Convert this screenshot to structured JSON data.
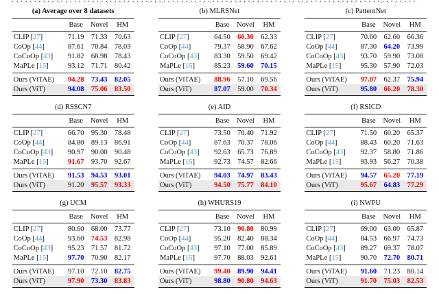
{
  "colors": {
    "best": "#ee0000",
    "second": "#0000ee",
    "cite": "#5f9ed1",
    "row_highlight": "#e9e9e9"
  },
  "header": {
    "columns": [
      "",
      "Base",
      "Novel",
      "HM"
    ]
  },
  "methods": [
    {
      "label": "CLIP",
      "cite": "27"
    },
    {
      "label": "CoOp",
      "cite": "44"
    },
    {
      "label": "CoCoOp",
      "cite": "43"
    },
    {
      "label": "MaPLe",
      "cite": "15"
    },
    {
      "label": "Ours (ViTAE)",
      "cite": null
    },
    {
      "label": "Ours (ViT)",
      "cite": null
    }
  ],
  "tables": [
    {
      "tag": "(a)",
      "name": "Average over 8 datasets",
      "bold": true,
      "values": [
        [
          [
            "71.19",
            "k"
          ],
          [
            "71.33",
            "k"
          ],
          [
            "70.63",
            "k"
          ]
        ],
        [
          [
            "87.61",
            "k"
          ],
          [
            "70.84",
            "k"
          ],
          [
            "78.03",
            "k"
          ]
        ],
        [
          [
            "91.82",
            "k"
          ],
          [
            "68.98",
            "k"
          ],
          [
            "78.43",
            "k"
          ]
        ],
        [
          [
            "93.12",
            "k"
          ],
          [
            "71.71",
            "k"
          ],
          [
            "80.42",
            "k"
          ]
        ],
        [
          [
            "94.28",
            "r"
          ],
          [
            "73.43",
            "b"
          ],
          [
            "82.05",
            "b"
          ]
        ],
        [
          [
            "94.08",
            "b"
          ],
          [
            "75.06",
            "r"
          ],
          [
            "83.50",
            "r"
          ]
        ]
      ]
    },
    {
      "tag": "(b)",
      "name": "MLRSNet",
      "bold": false,
      "values": [
        [
          [
            "64.50",
            "k"
          ],
          [
            "60.30",
            "r"
          ],
          [
            "62.33",
            "k"
          ]
        ],
        [
          [
            "79.37",
            "k"
          ],
          [
            "58.90",
            "k"
          ],
          [
            "67.62",
            "k"
          ]
        ],
        [
          [
            "83.30",
            "k"
          ],
          [
            "59.50",
            "k"
          ],
          [
            "69.42",
            "k"
          ]
        ],
        [
          [
            "85.23",
            "k"
          ],
          [
            "59.60",
            "b"
          ],
          [
            "70.15",
            "b"
          ]
        ],
        [
          [
            "88.96",
            "r"
          ],
          [
            "57.10",
            "k"
          ],
          [
            "69.56",
            "k"
          ]
        ],
        [
          [
            "87.07",
            "b"
          ],
          [
            "59.00",
            "k"
          ],
          [
            "70.34",
            "r"
          ]
        ]
      ]
    },
    {
      "tag": "(c)",
      "name": "PatternNet",
      "bold": false,
      "values": [
        [
          [
            "70.60",
            "k"
          ],
          [
            "62.60",
            "k"
          ],
          [
            "66.36",
            "k"
          ]
        ],
        [
          [
            "87.30",
            "k"
          ],
          [
            "64.20",
            "b"
          ],
          [
            "73.99",
            "k"
          ]
        ],
        [
          [
            "93.70",
            "k"
          ],
          [
            "59.90",
            "k"
          ],
          [
            "73.08",
            "k"
          ]
        ],
        [
          [
            "95.30",
            "k"
          ],
          [
            "57.90",
            "k"
          ],
          [
            "72.03",
            "k"
          ]
        ],
        [
          [
            "97.07",
            "r"
          ],
          [
            "62.37",
            "k"
          ],
          [
            "75.94",
            "b"
          ]
        ],
        [
          [
            "95.80",
            "b"
          ],
          [
            "66.20",
            "r"
          ],
          [
            "78.30",
            "r"
          ]
        ]
      ]
    },
    {
      "tag": "(d)",
      "name": "RSSCN7",
      "bold": false,
      "values": [
        [
          [
            "66.70",
            "k"
          ],
          [
            "95.30",
            "k"
          ],
          [
            "78.48",
            "k"
          ]
        ],
        [
          [
            "84.80",
            "k"
          ],
          [
            "89.13",
            "k"
          ],
          [
            "86.91",
            "k"
          ]
        ],
        [
          [
            "90.97",
            "k"
          ],
          [
            "90.00",
            "k"
          ],
          [
            "90.48",
            "k"
          ]
        ],
        [
          [
            "91.67",
            "r"
          ],
          [
            "93.70",
            "k"
          ],
          [
            "92.67",
            "k"
          ]
        ],
        [
          [
            "91.53",
            "b"
          ],
          [
            "94.53",
            "b"
          ],
          [
            "93.01",
            "b"
          ]
        ],
        [
          [
            "91.20",
            "k"
          ],
          [
            "95.57",
            "r"
          ],
          [
            "93.33",
            "r"
          ]
        ]
      ]
    },
    {
      "tag": "(e)",
      "name": "AID",
      "bold": false,
      "values": [
        [
          [
            "73.50",
            "k"
          ],
          [
            "70.40",
            "k"
          ],
          [
            "71.92",
            "k"
          ]
        ],
        [
          [
            "87.63",
            "k"
          ],
          [
            "70.37",
            "k"
          ],
          [
            "78.06",
            "k"
          ]
        ],
        [
          [
            "92.63",
            "k"
          ],
          [
            "65.73",
            "k"
          ],
          [
            "76.89",
            "k"
          ]
        ],
        [
          [
            "92.73",
            "k"
          ],
          [
            "74.57",
            "k"
          ],
          [
            "82.66",
            "k"
          ]
        ],
        [
          [
            "94.03",
            "b"
          ],
          [
            "74.97",
            "b"
          ],
          [
            "83.43",
            "b"
          ]
        ],
        [
          [
            "94.50",
            "r"
          ],
          [
            "75.77",
            "r"
          ],
          [
            "84.10",
            "r"
          ]
        ]
      ]
    },
    {
      "tag": "(f)",
      "name": "RSICD",
      "bold": false,
      "values": [
        [
          [
            "71.50",
            "k"
          ],
          [
            "60.20",
            "k"
          ],
          [
            "65.37",
            "k"
          ]
        ],
        [
          [
            "88.43",
            "k"
          ],
          [
            "60.20",
            "k"
          ],
          [
            "71.63",
            "k"
          ]
        ],
        [
          [
            "92.37",
            "k"
          ],
          [
            "58.80",
            "k"
          ],
          [
            "71.86",
            "k"
          ]
        ],
        [
          [
            "93.93",
            "k"
          ],
          [
            "56.27",
            "k"
          ],
          [
            "70.38",
            "k"
          ]
        ],
        [
          [
            "94.57",
            "b"
          ],
          [
            "65.20",
            "r"
          ],
          [
            "77.19",
            "b"
          ]
        ],
        [
          [
            "95.67",
            "r"
          ],
          [
            "64.83",
            "b"
          ],
          [
            "77.29",
            "r"
          ]
        ]
      ]
    },
    {
      "tag": "(g)",
      "name": "UCM",
      "bold": false,
      "values": [
        [
          [
            "80.60",
            "k"
          ],
          [
            "68.00",
            "k"
          ],
          [
            "73.77",
            "k"
          ]
        ],
        [
          [
            "93.60",
            "k"
          ],
          [
            "74.53",
            "r"
          ],
          [
            "82.98",
            "k"
          ]
        ],
        [
          [
            "95.23",
            "k"
          ],
          [
            "71.57",
            "k"
          ],
          [
            "81.72",
            "k"
          ]
        ],
        [
          [
            "97.70",
            "b"
          ],
          [
            "70.90",
            "k"
          ],
          [
            "82.17",
            "k"
          ]
        ],
        [
          [
            "97.10",
            "k"
          ],
          [
            "72.10",
            "k"
          ],
          [
            "82.75",
            "b"
          ]
        ],
        [
          [
            "97.90",
            "r"
          ],
          [
            "73.30",
            "b"
          ],
          [
            "83.83",
            "r"
          ]
        ]
      ]
    },
    {
      "tag": "(h)",
      "name": "WHURS19",
      "bold": false,
      "values": [
        [
          [
            "73.10",
            "k"
          ],
          [
            "90.80",
            "r"
          ],
          [
            "80.99",
            "k"
          ]
        ],
        [
          [
            "95.20",
            "k"
          ],
          [
            "82.40",
            "k"
          ],
          [
            "88.34",
            "k"
          ]
        ],
        [
          [
            "97.10",
            "k"
          ],
          [
            "77.00",
            "k"
          ],
          [
            "85.89",
            "k"
          ]
        ],
        [
          [
            "97.70",
            "k"
          ],
          [
            "88.03",
            "k"
          ],
          [
            "92.61",
            "k"
          ]
        ],
        [
          [
            "99.40",
            "r"
          ],
          [
            "89.90",
            "b"
          ],
          [
            "94.41",
            "b"
          ]
        ],
        [
          [
            "98.80",
            "b"
          ],
          [
            "90.80",
            "r"
          ],
          [
            "94.63",
            "r"
          ]
        ]
      ]
    },
    {
      "tag": "(i)",
      "name": "NWPU",
      "bold": false,
      "values": [
        [
          [
            "69.00",
            "k"
          ],
          [
            "63.00",
            "k"
          ],
          [
            "65.87",
            "k"
          ]
        ],
        [
          [
            "84.53",
            "k"
          ],
          [
            "66.97",
            "k"
          ],
          [
            "74.73",
            "k"
          ]
        ],
        [
          [
            "89.27",
            "k"
          ],
          [
            "69.37",
            "k"
          ],
          [
            "78.07",
            "k"
          ]
        ],
        [
          [
            "90.70",
            "k"
          ],
          [
            "72.70",
            "b"
          ],
          [
            "80.71",
            "b"
          ]
        ],
        [
          [
            "91.60",
            "b"
          ],
          [
            "71.23",
            "k"
          ],
          [
            "80.14",
            "k"
          ]
        ],
        [
          [
            "91.70",
            "r"
          ],
          [
            "75.03",
            "r"
          ],
          [
            "82.53",
            "r"
          ]
        ]
      ]
    }
  ]
}
